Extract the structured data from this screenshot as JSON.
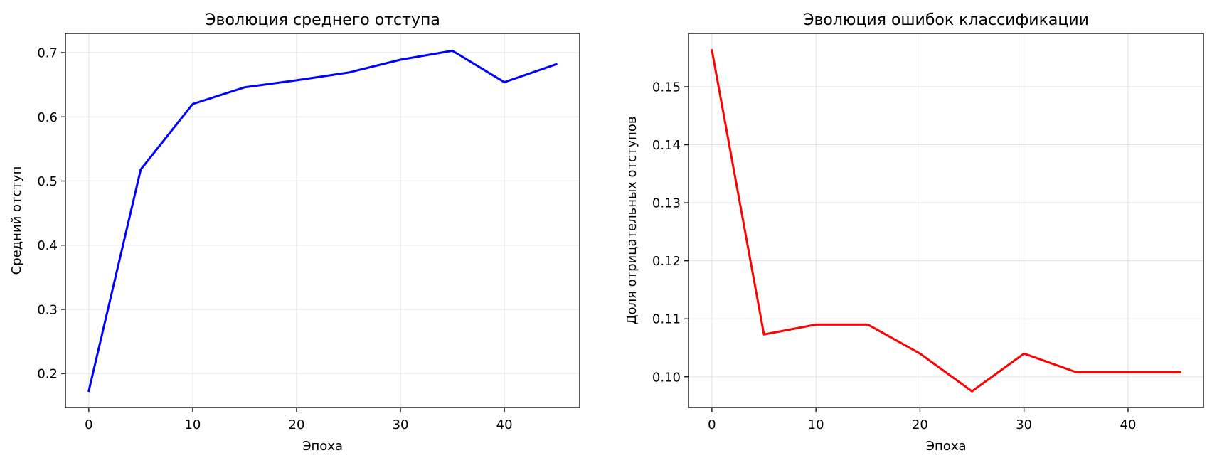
{
  "chart_data": [
    {
      "type": "line",
      "title": "Эволюция среднего отступа",
      "xlabel": "Эпоха",
      "ylabel": "Средний отступ",
      "x": [
        0,
        5,
        10,
        15,
        20,
        25,
        30,
        35,
        40,
        45
      ],
      "series": [
        {
          "values": [
            0.173,
            0.518,
            0.62,
            0.646,
            0.657,
            0.669,
            0.689,
            0.703,
            0.654,
            0.682
          ],
          "color": "#0000ff"
        }
      ],
      "xlim": [
        -2.25,
        47.25
      ],
      "ylim": [
        0.147,
        0.73
      ],
      "xticks": [
        0,
        10,
        20,
        30,
        40
      ],
      "yticks": [
        0.2,
        0.3,
        0.4,
        0.5,
        0.6,
        0.7
      ],
      "ytick_labels": [
        "0.2",
        "0.3",
        "0.4",
        "0.5",
        "0.6",
        "0.7"
      ],
      "grid": true
    },
    {
      "type": "line",
      "title": "Эволюция ошибок классификации",
      "xlabel": "Эпоха",
      "ylabel": "Доля отрицательных отступов",
      "x": [
        0,
        5,
        10,
        15,
        20,
        25,
        30,
        35,
        40,
        45
      ],
      "series": [
        {
          "values": [
            0.1563,
            0.1073,
            0.109,
            0.109,
            0.104,
            0.0975,
            0.104,
            0.1008,
            0.1008,
            0.1008
          ],
          "color": "#ff0000"
        }
      ],
      "xlim": [
        -2.25,
        47.25
      ],
      "ylim": [
        0.0947,
        0.1592
      ],
      "xticks": [
        0,
        10,
        20,
        30,
        40
      ],
      "yticks": [
        0.1,
        0.11,
        0.12,
        0.13,
        0.14,
        0.15
      ],
      "ytick_labels": [
        "0.10",
        "0.11",
        "0.12",
        "0.13",
        "0.14",
        "0.15"
      ],
      "grid": true
    }
  ]
}
